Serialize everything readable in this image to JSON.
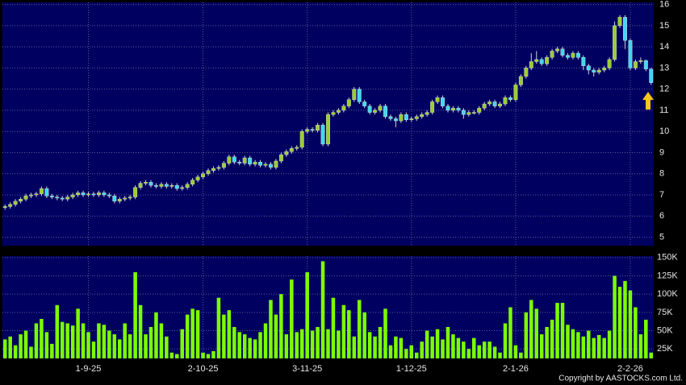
{
  "chart_data": {
    "type": "candlestick",
    "categories": [
      null,
      null,
      null,
      null,
      null,
      null,
      null,
      null,
      null,
      null,
      null,
      null,
      null,
      null,
      null,
      null,
      "1-9-25",
      null,
      null,
      null,
      null,
      null,
      null,
      null,
      null,
      null,
      null,
      null,
      null,
      null,
      null,
      null,
      null,
      null,
      null,
      null,
      null,
      null,
      "2-10-25",
      null,
      null,
      null,
      null,
      null,
      null,
      null,
      null,
      null,
      null,
      null,
      null,
      null,
      null,
      null,
      null,
      null,
      null,
      null,
      "3-11-25",
      null,
      null,
      null,
      null,
      null,
      null,
      null,
      null,
      null,
      null,
      null,
      null,
      null,
      null,
      null,
      null,
      null,
      null,
      null,
      "1-12-25",
      null,
      null,
      null,
      null,
      null,
      null,
      null,
      null,
      null,
      null,
      null,
      null,
      null,
      null,
      null,
      null,
      null,
      null,
      null,
      "2-1-26",
      null,
      null,
      null,
      null,
      null,
      null,
      null,
      null,
      null,
      null,
      null,
      null,
      null,
      null,
      null,
      null,
      null,
      null,
      null,
      null,
      null,
      "2-2-26",
      null,
      null,
      null,
      null
    ],
    "open": [
      6.4,
      6.45,
      6.55,
      6.7,
      6.8,
      6.95,
      7.0,
      7.05,
      7.3,
      6.95,
      6.9,
      6.85,
      6.8,
      6.9,
      7.0,
      7.1,
      7.0,
      7.05,
      7.0,
      7.1,
      7.0,
      6.95,
      6.7,
      6.8,
      6.85,
      6.9,
      7.35,
      7.55,
      7.6,
      7.45,
      7.4,
      7.5,
      7.4,
      7.45,
      7.3,
      7.35,
      7.5,
      7.7,
      7.85,
      8.0,
      8.15,
      8.25,
      8.3,
      8.5,
      8.8,
      8.55,
      8.5,
      8.75,
      8.45,
      8.55,
      8.4,
      8.45,
      8.3,
      8.6,
      8.9,
      9.05,
      9.2,
      9.25,
      10.0,
      10.1,
      10.05,
      10.3,
      9.4,
      10.8,
      10.9,
      11.0,
      11.2,
      11.5,
      12.0,
      11.4,
      11.2,
      10.9,
      11.0,
      11.2,
      10.7,
      10.6,
      10.5,
      10.8,
      10.55,
      10.6,
      10.7,
      10.8,
      10.9,
      11.4,
      11.6,
      11.2,
      11.0,
      11.1,
      11.0,
      10.8,
      10.9,
      10.9,
      11.1,
      11.3,
      11.4,
      11.2,
      11.3,
      11.6,
      11.5,
      12.2,
      12.6,
      13.0,
      13.3,
      13.4,
      13.2,
      13.5,
      13.8,
      13.9,
      13.6,
      13.5,
      13.7,
      13.5,
      13.1,
      12.9,
      12.8,
      12.9,
      13.0,
      13.4,
      15.0,
      15.4,
      14.3,
      13.0,
      13.3,
      13.35,
      12.95
    ],
    "high": [
      6.55,
      6.65,
      6.8,
      6.9,
      7.05,
      7.1,
      7.15,
      7.4,
      7.4,
      7.05,
      7.0,
      6.95,
      7.0,
      7.1,
      7.2,
      7.2,
      7.15,
      7.15,
      7.2,
      7.2,
      7.1,
      7.05,
      6.9,
      6.95,
      7.0,
      7.45,
      7.65,
      7.7,
      7.7,
      7.55,
      7.6,
      7.6,
      7.55,
      7.55,
      7.45,
      7.6,
      7.8,
      7.95,
      8.1,
      8.25,
      8.35,
      8.4,
      8.6,
      8.9,
      8.9,
      8.65,
      8.85,
      8.85,
      8.65,
      8.65,
      8.55,
      8.55,
      8.7,
      9.0,
      9.15,
      9.3,
      9.35,
      10.1,
      10.2,
      10.2,
      10.4,
      10.4,
      10.9,
      11.0,
      11.1,
      11.3,
      11.6,
      12.1,
      12.1,
      11.5,
      11.3,
      11.1,
      11.3,
      11.3,
      10.8,
      10.7,
      10.9,
      10.9,
      10.7,
      10.8,
      10.9,
      11.0,
      11.5,
      11.7,
      11.7,
      11.3,
      11.2,
      11.2,
      11.1,
      11.0,
      11.0,
      11.2,
      11.4,
      11.5,
      11.5,
      11.4,
      11.7,
      11.7,
      12.3,
      12.7,
      13.1,
      13.7,
      13.8,
      13.5,
      13.6,
      13.9,
      14.0,
      14.0,
      13.7,
      13.8,
      13.8,
      13.6,
      13.2,
      13.0,
      13.0,
      13.1,
      13.5,
      15.2,
      15.5,
      15.5,
      14.4,
      13.4,
      13.5,
      13.4,
      13.0
    ],
    "low": [
      6.3,
      6.35,
      6.45,
      6.6,
      6.7,
      6.85,
      6.9,
      6.95,
      6.85,
      6.8,
      6.75,
      6.7,
      6.7,
      6.8,
      6.9,
      6.9,
      6.9,
      6.9,
      6.9,
      6.9,
      6.85,
      6.6,
      6.6,
      6.7,
      6.75,
      6.8,
      7.25,
      7.45,
      7.35,
      7.3,
      7.3,
      7.3,
      7.3,
      7.2,
      7.2,
      7.25,
      7.4,
      7.6,
      7.75,
      7.9,
      8.05,
      8.15,
      8.2,
      8.4,
      8.45,
      8.4,
      8.4,
      8.35,
      8.35,
      8.3,
      8.3,
      8.2,
      8.2,
      8.5,
      8.8,
      8.95,
      9.1,
      9.15,
      9.9,
      9.95,
      9.95,
      9.3,
      9.3,
      10.7,
      10.8,
      10.9,
      11.1,
      11.4,
      11.3,
      11.1,
      10.8,
      10.8,
      10.9,
      10.6,
      10.5,
      10.2,
      10.4,
      10.45,
      10.45,
      10.5,
      10.6,
      10.7,
      10.8,
      11.3,
      11.1,
      10.9,
      10.9,
      10.9,
      10.6,
      10.7,
      10.8,
      10.8,
      11.0,
      11.2,
      11.1,
      11.1,
      11.2,
      11.4,
      11.4,
      12.1,
      12.5,
      12.9,
      13.2,
      13.1,
      13.1,
      13.4,
      13.7,
      13.5,
      13.4,
      13.4,
      13.4,
      12.9,
      12.7,
      12.6,
      12.7,
      12.8,
      12.9,
      13.3,
      14.9,
      13.9,
      12.9,
      12.9,
      13.2,
      12.85,
      12.2
    ],
    "close": [
      6.45,
      6.55,
      6.7,
      6.8,
      6.95,
      7.0,
      7.05,
      7.3,
      6.95,
      6.9,
      6.85,
      6.8,
      6.9,
      7.0,
      7.1,
      7.0,
      7.05,
      7.0,
      7.1,
      7.0,
      6.95,
      6.7,
      6.8,
      6.85,
      6.9,
      7.35,
      7.55,
      7.6,
      7.45,
      7.4,
      7.5,
      7.4,
      7.45,
      7.3,
      7.35,
      7.5,
      7.7,
      7.85,
      8.0,
      8.15,
      8.25,
      8.3,
      8.5,
      8.8,
      8.55,
      8.5,
      8.75,
      8.45,
      8.55,
      8.4,
      8.45,
      8.3,
      8.6,
      8.9,
      9.05,
      9.2,
      9.25,
      10.0,
      10.1,
      10.05,
      10.3,
      9.4,
      10.8,
      10.9,
      11.0,
      11.2,
      11.5,
      12.0,
      11.4,
      11.2,
      10.9,
      11.0,
      11.2,
      10.7,
      10.6,
      10.5,
      10.8,
      10.55,
      10.6,
      10.7,
      10.8,
      10.9,
      11.4,
      11.6,
      11.2,
      11.0,
      11.1,
      11.0,
      10.8,
      10.9,
      10.9,
      11.1,
      11.3,
      11.4,
      11.2,
      11.3,
      11.6,
      11.5,
      12.2,
      12.6,
      13.0,
      13.3,
      13.4,
      13.2,
      13.5,
      13.8,
      13.9,
      13.6,
      13.5,
      13.7,
      13.5,
      13.1,
      12.9,
      12.8,
      12.9,
      13.0,
      13.4,
      15.0,
      15.4,
      14.3,
      13.0,
      13.3,
      13.35,
      12.95,
      12.3
    ],
    "volume": [
      38000,
      42000,
      30000,
      45000,
      50000,
      28000,
      60000,
      66000,
      48000,
      32000,
      85000,
      62000,
      60000,
      57000,
      80000,
      60000,
      48000,
      35000,
      60000,
      58000,
      50000,
      45000,
      38000,
      60000,
      45000,
      130000,
      85000,
      45000,
      55000,
      75000,
      60000,
      42000,
      20000,
      18000,
      52000,
      72000,
      80000,
      78000,
      20000,
      18000,
      22000,
      95000,
      72000,
      78000,
      55000,
      48000,
      45000,
      40000,
      38000,
      48000,
      60000,
      92000,
      72000,
      100000,
      45000,
      120000,
      48000,
      52000,
      130000,
      50000,
      55000,
      145000,
      52000,
      95000,
      50000,
      85000,
      78000,
      42000,
      92000,
      75000,
      48000,
      42000,
      55000,
      80000,
      30000,
      42000,
      40000,
      25000,
      30000,
      20000,
      35000,
      50000,
      42000,
      52000,
      38000,
      55000,
      45000,
      40000,
      35000,
      25000,
      40000,
      30000,
      35000,
      35000,
      28000,
      20000,
      60000,
      82000,
      30000,
      20000,
      75000,
      92000,
      80000,
      45000,
      55000,
      65000,
      88000,
      88000,
      58000,
      52000,
      48000,
      42000,
      50000,
      40000,
      44000,
      40000,
      50000,
      125000,
      110000,
      118000,
      105000,
      82000,
      45000,
      65000,
      20000
    ],
    "ylim": [
      4.6,
      16.1
    ],
    "yticks": [
      5,
      6,
      7,
      8,
      9,
      10,
      11,
      12,
      13,
      14,
      15,
      16
    ],
    "volume_ylim": [
      12000,
      152000
    ],
    "volume_yticks": [
      {
        "value": 25000,
        "label": "25K"
      },
      {
        "value": 50000,
        "label": "50K"
      },
      {
        "value": 75000,
        "label": "75K"
      },
      {
        "value": 100000,
        "label": "100K"
      },
      {
        "value": 125000,
        "label": "125K"
      },
      {
        "value": 150000,
        "label": "150K"
      }
    ],
    "up_color": "#9acd32",
    "down_color": "#3fd8f0",
    "volume_color": "#7cfc00",
    "grid": true
  },
  "copyright": "Copyright by AASTOCKS.com Ltd."
}
